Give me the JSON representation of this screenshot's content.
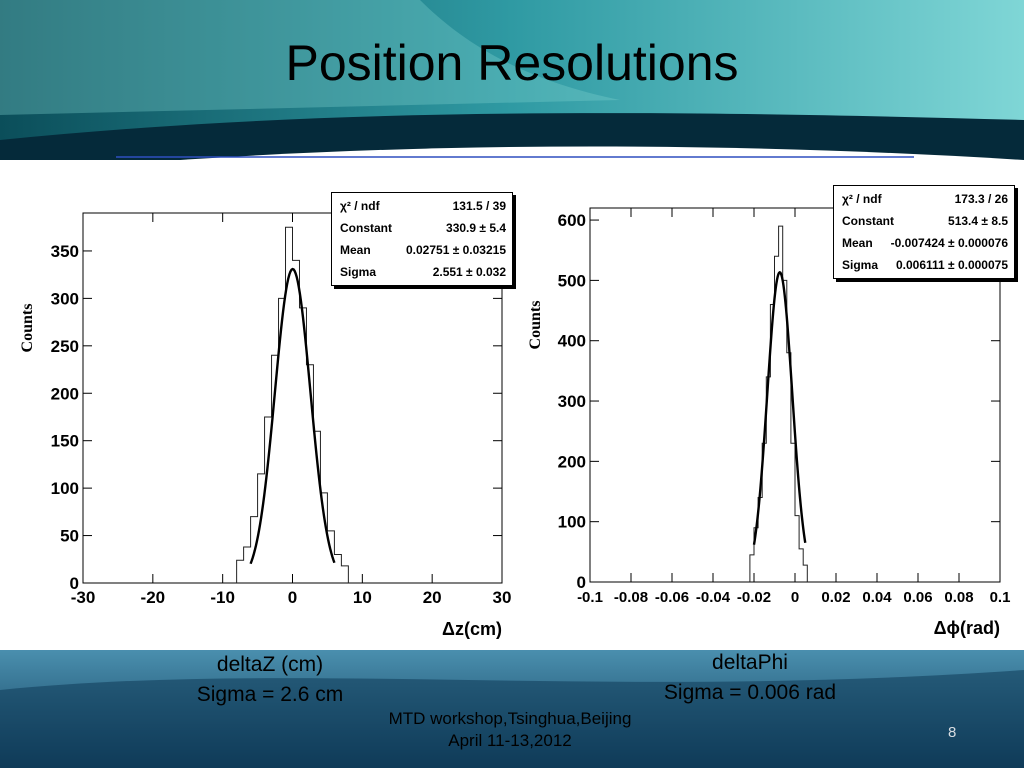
{
  "slide": {
    "title": "Position Resolutions",
    "page_number": "8",
    "footer": {
      "line1": "MTD workshop,Tsinghua,Beijing",
      "line2": "April 11-13,2012"
    },
    "captions": [
      {
        "line1": "deltaZ (cm)",
        "line2": "Sigma = 2.6 cm"
      },
      {
        "line1": "deltaPhi",
        "line2": "Sigma = 0.006 rad"
      }
    ],
    "colors": {
      "teal_dark": "#0e5a66",
      "teal_light": "#4fc1c6",
      "navy_band": "#052a3a",
      "bottom_band": "#1f6f8f",
      "rule_line": "#2f4fbf"
    }
  },
  "chart_data": [
    {
      "type": "histogram",
      "ylabel": "Counts",
      "xlabel": "Δz(cm)",
      "xlim": [
        -30,
        30
      ],
      "ylim": [
        0,
        390
      ],
      "x_ticks": [
        -30,
        -20,
        -10,
        0,
        10,
        20,
        30
      ],
      "y_ticks": [
        0,
        50,
        100,
        150,
        200,
        250,
        300,
        350
      ],
      "fit": {
        "function": "gaussian",
        "constant": 330.9,
        "mean": 0.02751,
        "sigma": 2.551,
        "range": [
          -6,
          6
        ]
      },
      "stats": [
        {
          "label": "χ² / ndf",
          "value": "131.5 / 39"
        },
        {
          "label": "Constant",
          "value": "330.9 ± 5.4"
        },
        {
          "label": "Mean",
          "value": "0.02751 ± 0.03215"
        },
        {
          "label": "Sigma",
          "value": "2.551 ± 0.032"
        }
      ],
      "bins": {
        "x": [
          -7.5,
          -6.5,
          -5.5,
          -4.5,
          -3.5,
          -2.5,
          -1.5,
          -0.5,
          0.5,
          1.5,
          2.5,
          3.5,
          4.5,
          5.5,
          6.5,
          7.5
        ],
        "counts": [
          24,
          38,
          70,
          115,
          175,
          240,
          300,
          375,
          340,
          290,
          230,
          160,
          95,
          55,
          30,
          18
        ]
      }
    },
    {
      "type": "histogram",
      "ylabel": "Counts",
      "xlabel": "Δϕ(rad)",
      "xlim": [
        -0.1,
        0.1
      ],
      "ylim": [
        0,
        620
      ],
      "x_ticks": [
        -0.1,
        -0.08,
        -0.06,
        -0.04,
        -0.02,
        0,
        0.02,
        0.04,
        0.06,
        0.08,
        0.1
      ],
      "y_ticks": [
        0,
        100,
        200,
        300,
        400,
        500,
        600
      ],
      "fit": {
        "function": "gaussian",
        "constant": 513.4,
        "mean": -0.007424,
        "sigma": 0.006111,
        "range": [
          -0.02,
          0.005
        ]
      },
      "stats": [
        {
          "label": "χ² / ndf",
          "value": "173.3 / 26"
        },
        {
          "label": "Constant",
          "value": "513.4 ± 8.5"
        },
        {
          "label": "Mean",
          "value": "-0.007424 ± 0.000076"
        },
        {
          "label": "Sigma",
          "value": "0.006111 ± 0.000075"
        }
      ],
      "bins": {
        "x": [
          -0.021,
          -0.019,
          -0.017,
          -0.015,
          -0.013,
          -0.011,
          -0.009,
          -0.007,
          -0.005,
          -0.003,
          -0.001,
          0.001,
          0.003,
          0.005
        ],
        "counts": [
          45,
          90,
          140,
          230,
          340,
          460,
          540,
          590,
          500,
          380,
          230,
          110,
          55,
          28
        ]
      }
    }
  ]
}
